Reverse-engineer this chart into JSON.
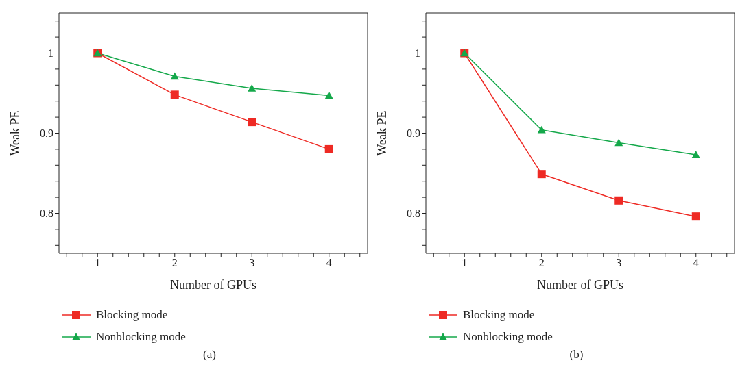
{
  "chart_data": [
    {
      "type": "line",
      "xlabel": "Number of GPUs",
      "ylabel": "Weak PE",
      "annotations": [
        "(a)"
      ],
      "x": [
        1,
        2,
        3,
        4
      ],
      "xlim": [
        0.5,
        4.5
      ],
      "xticks": [
        {
          "value": 0.6,
          "label": null
        },
        {
          "value": 0.8,
          "label": null
        },
        1,
        {
          "value": 1.2,
          "label": null
        },
        {
          "value": 1.4,
          "label": null
        },
        {
          "value": 1.6,
          "label": null
        },
        {
          "value": 1.8,
          "label": null
        },
        2,
        {
          "value": 2.2,
          "label": null
        },
        {
          "value": 2.4,
          "label": null
        },
        {
          "value": 2.6,
          "label": null
        },
        {
          "value": 2.8,
          "label": null
        },
        3,
        {
          "value": 3.2,
          "label": null
        },
        {
          "value": 3.4,
          "label": null
        },
        {
          "value": 3.6,
          "label": null
        },
        {
          "value": 3.8,
          "label": null
        },
        4,
        {
          "value": 4.2,
          "label": null
        },
        {
          "value": 4.4,
          "label": null
        }
      ],
      "ylim": [
        0.75,
        1.05
      ],
      "yticks": [
        {
          "value": 0.76,
          "label": null
        },
        {
          "value": 0.78,
          "label": null
        },
        0.8,
        {
          "value": 0.82,
          "label": null
        },
        {
          "value": 0.84,
          "label": null
        },
        {
          "value": 0.86,
          "label": null
        },
        {
          "value": 0.88,
          "label": null
        },
        0.9,
        {
          "value": 0.92,
          "label": null
        },
        {
          "value": 0.94,
          "label": null
        },
        {
          "value": 0.96,
          "label": null
        },
        {
          "value": 0.98,
          "label": null
        },
        1,
        {
          "value": 1.02,
          "label": null
        },
        {
          "value": 1.04,
          "label": null
        }
      ],
      "grid": false,
      "legend": "bottom left",
      "line_style": "solid",
      "series": [
        {
          "name": "Blocking mode",
          "color": "#ee2a24",
          "marker": "square",
          "values": [
            1,
            0.948,
            0.914,
            0.88
          ]
        },
        {
          "name": "Nonblocking mode",
          "color": "#14a84a",
          "marker": "triangle",
          "values": [
            1,
            0.971,
            0.956,
            0.947
          ]
        }
      ]
    },
    {
      "type": "line",
      "xlabel": "Number of GPUs",
      "ylabel": "Weak PE",
      "annotations": [
        "(b)"
      ],
      "x": [
        1,
        2,
        3,
        4
      ],
      "xlim": [
        0.5,
        4.5
      ],
      "xticks": [
        {
          "value": 0.6,
          "label": null
        },
        {
          "value": 0.8,
          "label": null
        },
        1,
        {
          "value": 1.2,
          "label": null
        },
        {
          "value": 1.4,
          "label": null
        },
        {
          "value": 1.6,
          "label": null
        },
        {
          "value": 1.8,
          "label": null
        },
        2,
        {
          "value": 2.2,
          "label": null
        },
        {
          "value": 2.4,
          "label": null
        },
        {
          "value": 2.6,
          "label": null
        },
        {
          "value": 2.8,
          "label": null
        },
        3,
        {
          "value": 3.2,
          "label": null
        },
        {
          "value": 3.4,
          "label": null
        },
        {
          "value": 3.6,
          "label": null
        },
        {
          "value": 3.8,
          "label": null
        },
        4,
        {
          "value": 4.2,
          "label": null
        },
        {
          "value": 4.4,
          "label": null
        }
      ],
      "ylim": [
        0.75,
        1.05
      ],
      "yticks": [
        {
          "value": 0.76,
          "label": null
        },
        {
          "value": 0.78,
          "label": null
        },
        0.8,
        {
          "value": 0.82,
          "label": null
        },
        {
          "value": 0.84,
          "label": null
        },
        {
          "value": 0.86,
          "label": null
        },
        {
          "value": 0.88,
          "label": null
        },
        0.9,
        {
          "value": 0.92,
          "label": null
        },
        {
          "value": 0.94,
          "label": null
        },
        {
          "value": 0.96,
          "label": null
        },
        {
          "value": 0.98,
          "label": null
        },
        1,
        {
          "value": 1.02,
          "label": null
        },
        {
          "value": 1.04,
          "label": null
        }
      ],
      "grid": false,
      "legend": "bottom left",
      "line_style": "solid",
      "series": [
        {
          "name": "Blocking mode",
          "color": "#ee2a24",
          "marker": "square",
          "values": [
            1,
            0.849,
            0.816,
            0.796
          ]
        },
        {
          "name": "Nonblocking mode",
          "color": "#14a84a",
          "marker": "triangle",
          "values": [
            1,
            0.904,
            0.888,
            0.873
          ]
        }
      ]
    }
  ]
}
